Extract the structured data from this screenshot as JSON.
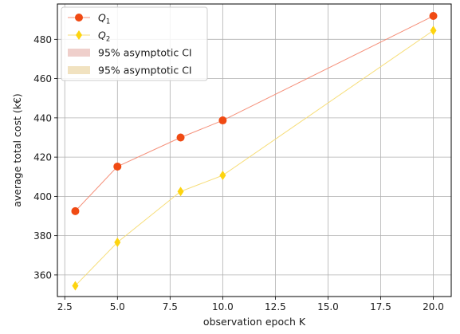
{
  "chart_data": {
    "type": "line",
    "xlabel": "observation epoch K",
    "ylabel": "average total cost (k€)",
    "xlim": [
      2.15,
      20.85
    ],
    "ylim": [
      349,
      498
    ],
    "grid": true,
    "legend_placement": "top-left",
    "x_ticks": [
      "2.5",
      "5.0",
      "7.5",
      "10.0",
      "12.5",
      "15.0",
      "17.5",
      "20.0"
    ],
    "x_tick_values": [
      2.5,
      5.0,
      7.5,
      10.0,
      12.5,
      15.0,
      17.5,
      20.0
    ],
    "y_ticks": [
      "360",
      "380",
      "400",
      "420",
      "440",
      "460",
      "480"
    ],
    "y_tick_values": [
      360,
      380,
      400,
      420,
      440,
      460,
      480
    ],
    "x": [
      3,
      5,
      8,
      10,
      20
    ],
    "series": [
      {
        "name_main": "Q",
        "name_sub": "1",
        "values": [
          392.5,
          415.2,
          430.0,
          438.7,
          491.9
        ],
        "line_color": "#f5907a",
        "marker_color": "#f04a13",
        "marker": "circle"
      },
      {
        "name_main": "Q",
        "name_sub": "2",
        "values": [
          354.5,
          376.6,
          402.5,
          410.7,
          484.5
        ],
        "line_color": "#f7de7a",
        "marker_color": "#fdd40f",
        "marker": "diamond"
      }
    ],
    "ci_legend": [
      {
        "label": "95% asymptotic CI",
        "color": "#efcfcb"
      },
      {
        "label": "95% asymptotic CI",
        "color": "#f1e2c0"
      }
    ]
  }
}
